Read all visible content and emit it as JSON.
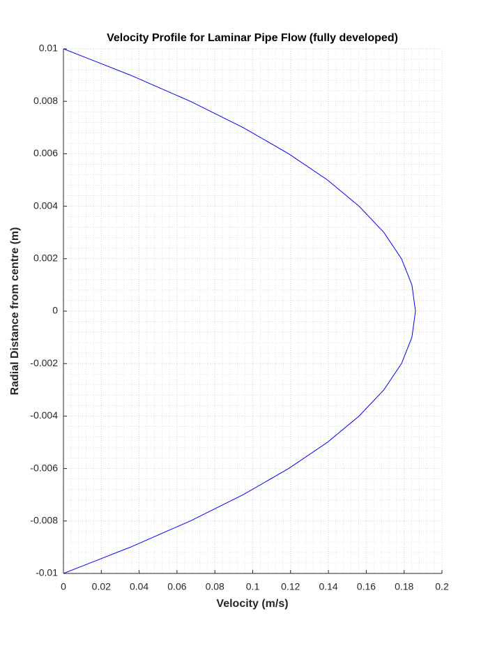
{
  "chart_data": {
    "type": "line",
    "title": "Velocity Profile for Laminar Pipe Flow (fully developed)",
    "x_label": "Velocity (m/s)",
    "y_label": "Radial Distance from centre (m)",
    "x": [
      0,
      0.0353,
      0.067,
      0.0949,
      0.119,
      0.1395,
      0.1562,
      0.1693,
      0.1786,
      0.1841,
      0.186,
      0.1841,
      0.1786,
      0.1693,
      0.1562,
      0.1395,
      0.119,
      0.0949,
      0.067,
      0.0353,
      0
    ],
    "series": [
      {
        "color": "#0000ff",
        "values": [
          -0.01,
          -0.009,
          -0.008,
          -0.007,
          -0.006,
          -0.005,
          -0.004,
          -0.003,
          -0.002,
          -0.001,
          0,
          0.001,
          0.002,
          0.003,
          0.004,
          0.005,
          0.006,
          0.007,
          0.008,
          0.009,
          0.01
        ]
      }
    ],
    "xlim": [
      0,
      0.2
    ],
    "ylim": [
      -0.01,
      0.01
    ],
    "xticks": [
      0,
      0.02,
      0.04,
      0.06,
      0.08,
      0.1,
      0.12,
      0.14,
      0.16,
      0.18,
      0.2
    ],
    "yticks": [
      -0.01,
      -0.008,
      -0.006,
      -0.004,
      -0.002,
      0,
      0.002,
      0.004,
      0.006,
      0.008,
      0.01
    ],
    "grid": true,
    "minor_grid": true
  }
}
